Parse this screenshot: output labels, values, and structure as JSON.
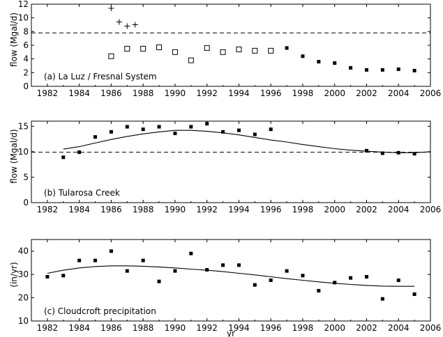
{
  "chart_data": [
    {
      "type": "scatter",
      "panel": "a",
      "annotation": "(a)  La Luz / Fresnal System",
      "ylabel": "flow  (Mgal/d)",
      "xlabel": "",
      "xlim": [
        1981,
        2006
      ],
      "ylim": [
        0,
        12
      ],
      "xticks": [
        1982,
        1984,
        1986,
        1988,
        1990,
        1992,
        1994,
        1996,
        1998,
        2000,
        2002,
        2004,
        2006
      ],
      "yticks": [
        0,
        2,
        4,
        6,
        8,
        10,
        12
      ],
      "hlines": [
        {
          "y": 7.8,
          "style": "dashed"
        }
      ],
      "series": [
        {
          "marker": "plus",
          "x": [
            1986,
            1986.5,
            1987,
            1987.5
          ],
          "y": [
            11.4,
            9.4,
            8.8,
            9.0
          ]
        },
        {
          "marker": "open-square",
          "x": [
            1986,
            1987,
            1988,
            1989,
            1990,
            1991,
            1992,
            1993,
            1994,
            1995,
            1996
          ],
          "y": [
            4.4,
            5.5,
            5.5,
            5.7,
            5.0,
            3.8,
            5.6,
            5.0,
            5.4,
            5.2,
            5.2
          ]
        },
        {
          "marker": "filled-square",
          "x": [
            1997,
            1998,
            1999,
            2000,
            2001,
            2002,
            2003,
            2004,
            2005
          ],
          "y": [
            5.6,
            4.4,
            3.6,
            3.4,
            2.7,
            2.4,
            2.4,
            2.5,
            2.3
          ]
        }
      ]
    },
    {
      "type": "scatter",
      "panel": "b",
      "annotation": "(b)  Tularosa  Creek",
      "ylabel": "flow  (Mgal/d)",
      "xlabel": "",
      "xlim": [
        1981,
        2006
      ],
      "ylim": [
        0,
        16
      ],
      "xticks": [
        1982,
        1984,
        1986,
        1988,
        1990,
        1992,
        1994,
        1996,
        1998,
        2000,
        2002,
        2004,
        2006
      ],
      "yticks": [
        0,
        5,
        10,
        15
      ],
      "hlines": [
        {
          "y": 9.9,
          "style": "dashed"
        }
      ],
      "series": [
        {
          "marker": "filled-square",
          "x": [
            1983,
            1984,
            1985,
            1986,
            1987,
            1988,
            1989,
            1990,
            1991,
            1992,
            1993,
            1994,
            1995,
            1996,
            2002,
            2003,
            2004,
            2005
          ],
          "y": [
            8.9,
            9.9,
            12.9,
            13.9,
            14.9,
            14.4,
            14.9,
            13.6,
            14.9,
            15.5,
            13.9,
            14.2,
            13.4,
            14.4,
            10.2,
            9.7,
            9.8,
            9.6
          ]
        },
        {
          "marker": "line",
          "x": [
            1983,
            1984,
            1985,
            1986,
            1987,
            1988,
            1989,
            1990,
            1991,
            1992,
            1993,
            1994,
            1995,
            1996,
            1997,
            1998,
            1999,
            2000,
            2001,
            2002,
            2003,
            2004,
            2005,
            2006
          ],
          "y": [
            10.5,
            11.0,
            11.7,
            12.4,
            13.0,
            13.5,
            13.9,
            14.2,
            14.2,
            14.0,
            13.7,
            13.3,
            12.8,
            12.3,
            11.9,
            11.4,
            11.0,
            10.6,
            10.3,
            10.1,
            9.9,
            9.8,
            9.8,
            10.0
          ]
        }
      ]
    },
    {
      "type": "scatter",
      "panel": "c",
      "annotation": "(c)  Cloudcroft  precipitation",
      "ylabel": "(in/yr)",
      "xlabel": "yr",
      "xlim": [
        1981,
        2006
      ],
      "ylim": [
        10,
        45
      ],
      "xticks": [
        1982,
        1984,
        1986,
        1988,
        1990,
        1992,
        1994,
        1996,
        1998,
        2000,
        2002,
        2004,
        2006
      ],
      "yticks": [
        10,
        20,
        30,
        40
      ],
      "hlines": [],
      "series": [
        {
          "marker": "filled-square",
          "x": [
            1982,
            1983,
            1984,
            1985,
            1986,
            1987,
            1988,
            1989,
            1990,
            1991,
            1992,
            1993,
            1994,
            1995,
            1996,
            1997,
            1998,
            1999,
            2000,
            2001,
            2002,
            2003,
            2004,
            2005
          ],
          "y": [
            29,
            29.5,
            36,
            36,
            40,
            31.5,
            36,
            27,
            31.5,
            39,
            32,
            34,
            34,
            25.5,
            27.5,
            31.5,
            29.5,
            23,
            26.5,
            28.5,
            29,
            19.5,
            27.5,
            21.5
          ]
        },
        {
          "marker": "line",
          "x": [
            1982,
            1983,
            1984,
            1985,
            1986,
            1987,
            1988,
            1989,
            1990,
            1991,
            1992,
            1993,
            1994,
            1995,
            1996,
            1997,
            1998,
            1999,
            2000,
            2001,
            2002,
            2003,
            2004,
            2005
          ],
          "y": [
            30.5,
            31.8,
            32.8,
            33.4,
            33.7,
            33.7,
            33.5,
            33.2,
            32.8,
            32.3,
            31.8,
            31.2,
            30.5,
            29.8,
            29.0,
            28.2,
            27.5,
            26.8,
            26.2,
            25.7,
            25.3,
            25.0,
            24.9,
            24.9
          ]
        }
      ]
    }
  ]
}
